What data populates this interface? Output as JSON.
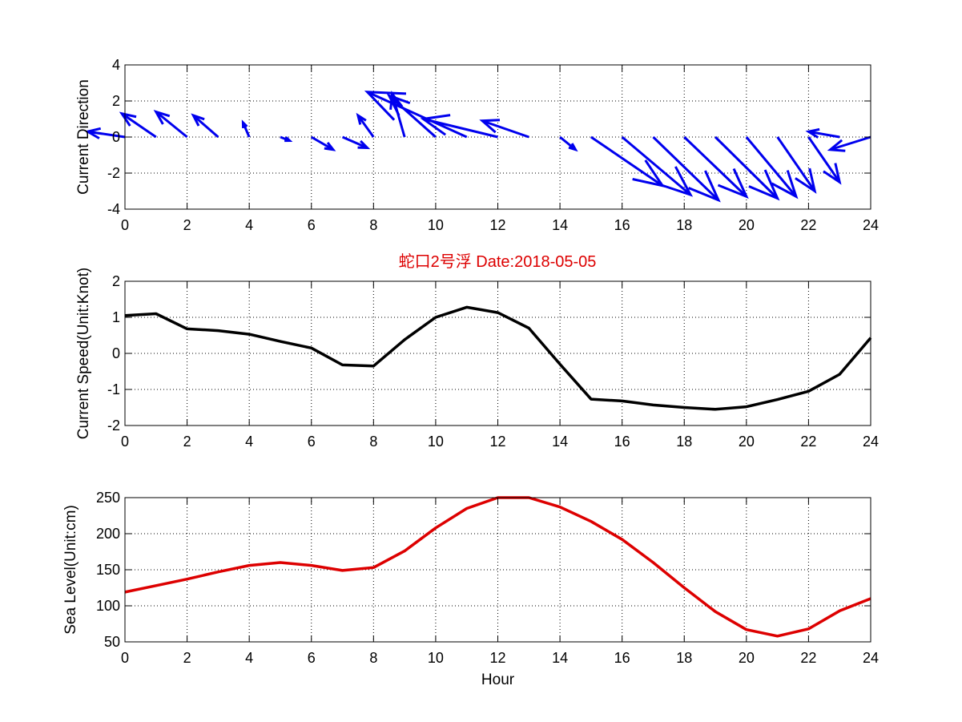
{
  "figure": {
    "title": "蛇口2号浮   Date:2018-05-05",
    "title_color": "#dd0000"
  },
  "chart_data": [
    {
      "type": "quiver",
      "ylabel": "Current Direction",
      "xlabel": "",
      "xlim": [
        0,
        24
      ],
      "ylim": [
        -4,
        4
      ],
      "xticks": [
        0,
        2,
        4,
        6,
        8,
        10,
        12,
        14,
        16,
        18,
        20,
        22,
        24
      ],
      "yticks": [
        -4,
        -2,
        0,
        2,
        4
      ],
      "grid": true,
      "color": "#0000ee",
      "x": [
        0,
        1,
        2,
        3,
        4,
        5,
        6,
        7,
        8,
        9,
        10,
        11,
        12,
        13,
        14,
        15,
        16,
        17,
        18,
        19,
        20,
        21,
        22,
        23,
        24
      ],
      "u": [
        -1.2,
        -1.1,
        -1.0,
        -0.8,
        -0.2,
        0.3,
        0.7,
        0.8,
        -0.5,
        -0.4,
        -1.5,
        -3.2,
        -2.4,
        -1.5,
        0.5,
        2.3,
        2.2,
        2.1,
        2.0,
        2.0,
        1.6,
        1.2,
        1.0,
        -1.0,
        -1.3
      ],
      "v": [
        0.3,
        1.3,
        1.4,
        1.2,
        0.8,
        -0.2,
        -0.7,
        -0.6,
        1.2,
        2.4,
        2.3,
        2.5,
        1.0,
        0.9,
        -0.7,
        -2.7,
        -3.2,
        -3.5,
        -3.3,
        -3.4,
        -3.3,
        -3.0,
        -2.5,
        0.3,
        -0.7
      ]
    },
    {
      "type": "line",
      "ylabel": "Current Speed(Unit:Knot)",
      "xlabel": "",
      "xlim": [
        0,
        24
      ],
      "ylim": [
        -2,
        2
      ],
      "xticks": [
        0,
        2,
        4,
        6,
        8,
        10,
        12,
        14,
        16,
        18,
        20,
        22,
        24
      ],
      "yticks": [
        -2,
        -1,
        0,
        1,
        2
      ],
      "grid": true,
      "color": "#000000",
      "x": [
        0,
        1,
        2,
        3,
        4,
        5,
        6,
        7,
        8,
        9,
        10,
        11,
        12,
        13,
        14,
        15,
        16,
        17,
        18,
        19,
        20,
        21,
        22,
        23,
        24
      ],
      "y": [
        1.05,
        1.1,
        0.68,
        0.63,
        0.53,
        0.33,
        0.15,
        -0.32,
        -0.35,
        0.38,
        1.0,
        1.28,
        1.13,
        0.7,
        -0.3,
        -1.27,
        -1.32,
        -1.43,
        -1.5,
        -1.55,
        -1.48,
        -1.28,
        -1.05,
        -0.58,
        0.43
      ]
    },
    {
      "type": "line",
      "ylabel": "Sea Level(Unit:cm)",
      "xlabel": "Hour",
      "xlim": [
        0,
        24
      ],
      "ylim": [
        50,
        250
      ],
      "xticks": [
        0,
        2,
        4,
        6,
        8,
        10,
        12,
        14,
        16,
        18,
        20,
        22,
        24
      ],
      "yticks": [
        50,
        100,
        150,
        200,
        250
      ],
      "grid": true,
      "color": "#dd0000",
      "x": [
        0,
        1,
        2,
        3,
        4,
        5,
        6,
        7,
        8,
        9,
        10,
        11,
        12,
        13,
        14,
        15,
        16,
        17,
        18,
        19,
        20,
        21,
        22,
        23,
        24
      ],
      "y": [
        119,
        128,
        137,
        147,
        156,
        160,
        156,
        149,
        153,
        176,
        208,
        235,
        250,
        250,
        237,
        217,
        192,
        160,
        125,
        92,
        67,
        58,
        68,
        93,
        110
      ]
    }
  ]
}
